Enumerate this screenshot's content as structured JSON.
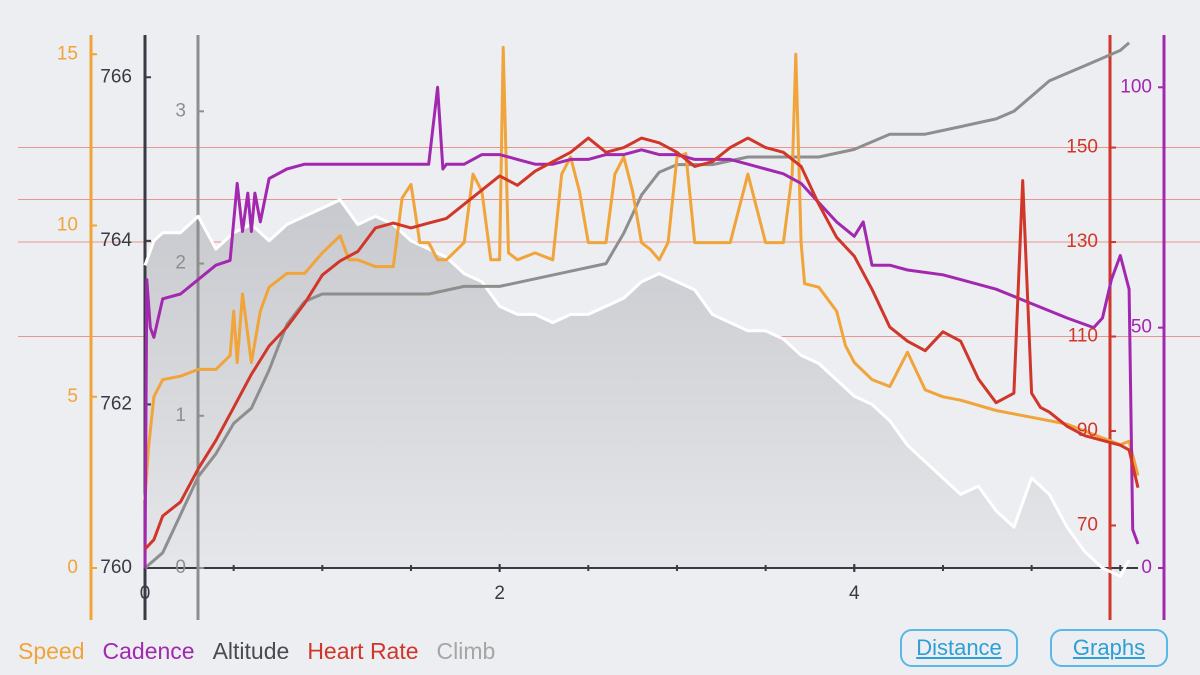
{
  "chart_data": {
    "type": "line",
    "x_range": [
      0,
      5.6
    ],
    "x_ticks": [
      0,
      2,
      4
    ],
    "x_tick_labels": [
      "0",
      "2",
      "4"
    ],
    "axes": {
      "speed": {
        "color": "#f0a43a",
        "range": [
          0,
          16
        ],
        "ticks": [
          0,
          5,
          10,
          15
        ],
        "labels": [
          "0",
          "5",
          "10",
          "15"
        ]
      },
      "altitude": {
        "color": "#3a3a44",
        "range": [
          760,
          766.7
        ],
        "ticks": [
          760,
          762,
          764,
          766
        ],
        "labels": [
          "760",
          "762",
          "764",
          "766"
        ]
      },
      "climb": {
        "color": "#8e8e8e",
        "range": [
          0,
          3.6
        ],
        "ticks": [
          0,
          1,
          2,
          3
        ],
        "labels": [
          "0",
          "1",
          "2",
          "3"
        ]
      },
      "heart_rate": {
        "color": "#d0362a",
        "range": [
          61,
          177
        ],
        "ticks": [
          70,
          90,
          110,
          130,
          150
        ],
        "labels": [
          "70",
          "90",
          "110",
          "130",
          "150"
        ]
      },
      "cadence": {
        "color": "#a228b0",
        "range": [
          0,
          114
        ],
        "ticks": [
          0,
          50,
          100
        ],
        "labels": [
          "0",
          "50",
          "100"
        ]
      }
    },
    "series": [
      {
        "name": "Speed",
        "axis": "speed",
        "color": "#f0a43a",
        "x": [
          0,
          0.02,
          0.05,
          0.1,
          0.2,
          0.3,
          0.4,
          0.48,
          0.5,
          0.52,
          0.55,
          0.6,
          0.65,
          0.7,
          0.8,
          0.9,
          1.0,
          1.1,
          1.15,
          1.2,
          1.3,
          1.4,
          1.45,
          1.5,
          1.55,
          1.6,
          1.65,
          1.7,
          1.8,
          1.85,
          1.9,
          1.95,
          2.0,
          2.02,
          2.05,
          2.1,
          2.2,
          2.3,
          2.35,
          2.4,
          2.45,
          2.5,
          2.6,
          2.65,
          2.7,
          2.75,
          2.8,
          2.85,
          2.9,
          2.95,
          3.0,
          3.05,
          3.1,
          3.2,
          3.3,
          3.4,
          3.5,
          3.6,
          3.65,
          3.67,
          3.7,
          3.72,
          3.8,
          3.9,
          3.95,
          4.0,
          4.1,
          4.2,
          4.3,
          4.4,
          4.5,
          4.6,
          4.8,
          5.0,
          5.2,
          5.3,
          5.4,
          5.5,
          5.55,
          5.6
        ],
        "values": [
          2,
          3.5,
          5,
          5.5,
          5.6,
          5.8,
          5.8,
          6.2,
          7.5,
          6,
          8,
          6,
          7.5,
          8.2,
          8.6,
          8.6,
          9.2,
          9.7,
          9,
          9,
          8.8,
          8.8,
          10.8,
          11.2,
          9.5,
          9.5,
          9,
          9,
          9.5,
          11.5,
          11,
          9,
          9,
          15.2,
          9.2,
          9,
          9.2,
          9,
          11.5,
          12,
          11,
          9.5,
          9.5,
          11.5,
          12,
          11,
          9.5,
          9.3,
          9,
          9.5,
          12,
          12.1,
          9.5,
          9.5,
          9.5,
          11.5,
          9.5,
          9.5,
          11.5,
          15,
          9.5,
          8.3,
          8.2,
          7.5,
          6.5,
          6,
          5.5,
          5.3,
          6.3,
          5.2,
          5,
          4.9,
          4.6,
          4.4,
          4.2,
          4.0,
          3.8,
          3.6,
          3.7,
          2.7
        ]
      },
      {
        "name": "Cadence",
        "axis": "cadence",
        "color": "#a228b0",
        "x": [
          0,
          0.01,
          0.03,
          0.05,
          0.1,
          0.2,
          0.3,
          0.4,
          0.48,
          0.52,
          0.55,
          0.58,
          0.6,
          0.62,
          0.65,
          0.7,
          0.8,
          0.9,
          1.0,
          1.2,
          1.4,
          1.6,
          1.65,
          1.68,
          1.7,
          1.8,
          1.9,
          2.0,
          2.1,
          2.2,
          2.3,
          2.4,
          2.5,
          2.6,
          2.7,
          2.8,
          2.9,
          3.0,
          3.1,
          3.2,
          3.3,
          3.4,
          3.5,
          3.6,
          3.7,
          3.8,
          3.9,
          4.0,
          4.05,
          4.1,
          4.2,
          4.3,
          4.5,
          4.6,
          4.8,
          5.0,
          5.2,
          5.35,
          5.4,
          5.45,
          5.5,
          5.55,
          5.57,
          5.6
        ],
        "values": [
          0,
          60,
          50,
          48,
          56,
          57,
          60,
          63,
          64,
          80,
          70,
          78,
          70,
          78,
          72,
          81,
          83,
          84,
          84,
          84,
          84,
          84,
          100,
          83,
          84,
          84,
          86,
          86,
          85,
          84,
          84,
          85,
          85,
          86,
          86,
          87,
          86,
          86,
          85,
          85,
          85,
          84,
          83,
          82,
          80,
          76,
          72,
          69,
          72,
          63,
          63,
          62,
          61,
          60,
          58,
          55,
          52,
          50,
          52,
          60,
          65,
          58,
          8,
          5
        ]
      },
      {
        "name": "Altitude",
        "axis": "altitude",
        "color": "#ffffff",
        "fill": true,
        "x": [
          0,
          0.05,
          0.1,
          0.2,
          0.3,
          0.4,
          0.5,
          0.6,
          0.7,
          0.8,
          0.9,
          1.0,
          1.1,
          1.2,
          1.3,
          1.4,
          1.5,
          1.6,
          1.7,
          1.8,
          1.9,
          2.0,
          2.1,
          2.2,
          2.3,
          2.4,
          2.5,
          2.6,
          2.7,
          2.8,
          2.9,
          3.0,
          3.1,
          3.2,
          3.3,
          3.4,
          3.5,
          3.6,
          3.7,
          3.8,
          3.9,
          4.0,
          4.1,
          4.2,
          4.3,
          4.4,
          4.5,
          4.6,
          4.7,
          4.8,
          4.9,
          5.0,
          5.1,
          5.2,
          5.3,
          5.4,
          5.5,
          5.55
        ],
        "values": [
          763.7,
          764.0,
          764.1,
          764.1,
          764.3,
          763.9,
          764.1,
          764.2,
          764.0,
          764.2,
          764.3,
          764.4,
          764.5,
          764.2,
          764.3,
          764.2,
          764.0,
          763.9,
          763.8,
          763.6,
          763.5,
          763.2,
          763.1,
          763.1,
          763.0,
          763.1,
          763.1,
          763.2,
          763.3,
          763.5,
          763.6,
          763.5,
          763.4,
          763.1,
          763.0,
          762.9,
          762.9,
          762.8,
          762.6,
          762.5,
          762.3,
          762.1,
          762.0,
          761.8,
          761.5,
          761.3,
          761.1,
          760.9,
          761.0,
          760.7,
          760.5,
          761.1,
          760.9,
          760.5,
          760.2,
          760.0,
          759.9,
          760.1
        ]
      },
      {
        "name": "Heart Rate",
        "axis": "heart_rate",
        "color": "#d0362a",
        "x": [
          0,
          0.05,
          0.1,
          0.2,
          0.3,
          0.4,
          0.5,
          0.6,
          0.7,
          0.8,
          0.9,
          1.0,
          1.1,
          1.2,
          1.3,
          1.4,
          1.5,
          1.6,
          1.7,
          1.8,
          1.9,
          2.0,
          2.1,
          2.2,
          2.3,
          2.4,
          2.5,
          2.6,
          2.7,
          2.8,
          2.9,
          3.0,
          3.1,
          3.2,
          3.3,
          3.4,
          3.5,
          3.6,
          3.7,
          3.8,
          3.9,
          4.0,
          4.1,
          4.2,
          4.3,
          4.4,
          4.5,
          4.6,
          4.7,
          4.8,
          4.9,
          4.95,
          5.0,
          5.05,
          5.1,
          5.2,
          5.3,
          5.4,
          5.5,
          5.55,
          5.6
        ],
        "values": [
          65,
          67,
          72,
          75,
          82,
          88,
          95,
          102,
          108,
          112,
          117,
          123,
          126,
          128,
          133,
          134,
          133,
          134,
          135,
          138,
          141,
          144,
          142,
          145,
          147,
          149,
          152,
          149,
          150,
          152,
          151,
          149,
          146,
          147,
          150,
          152,
          150,
          149,
          146,
          138,
          131,
          127,
          120,
          112,
          109,
          107,
          111,
          109,
          101,
          96,
          98,
          143,
          98,
          95,
          94,
          91,
          89,
          88,
          87,
          86,
          78
        ]
      },
      {
        "name": "Climb",
        "axis": "climb",
        "color": "#8e8e8e",
        "x": [
          0,
          0.1,
          0.2,
          0.3,
          0.4,
          0.5,
          0.6,
          0.7,
          0.8,
          0.9,
          1.0,
          1.1,
          1.2,
          1.4,
          1.6,
          1.8,
          2.0,
          2.2,
          2.4,
          2.6,
          2.7,
          2.8,
          2.9,
          3.0,
          3.2,
          3.4,
          3.6,
          3.8,
          4.0,
          4.2,
          4.4,
          4.6,
          4.8,
          4.9,
          5.0,
          5.1,
          5.2,
          5.3,
          5.4,
          5.5,
          5.55
        ],
        "values": [
          0,
          0.1,
          0.35,
          0.6,
          0.75,
          0.95,
          1.05,
          1.3,
          1.6,
          1.75,
          1.8,
          1.8,
          1.8,
          1.8,
          1.8,
          1.85,
          1.85,
          1.9,
          1.95,
          2.0,
          2.2,
          2.45,
          2.6,
          2.65,
          2.65,
          2.7,
          2.7,
          2.7,
          2.75,
          2.85,
          2.85,
          2.9,
          2.95,
          3.0,
          3.1,
          3.2,
          3.25,
          3.3,
          3.35,
          3.4,
          3.45
        ]
      }
    ]
  },
  "legend": {
    "speed": "Speed",
    "cadence": "Cadence",
    "altitude": "Altitude",
    "heart_rate": "Heart Rate",
    "climb": "Climb"
  },
  "buttons": {
    "distance": "Distance",
    "graphs": "Graphs"
  }
}
